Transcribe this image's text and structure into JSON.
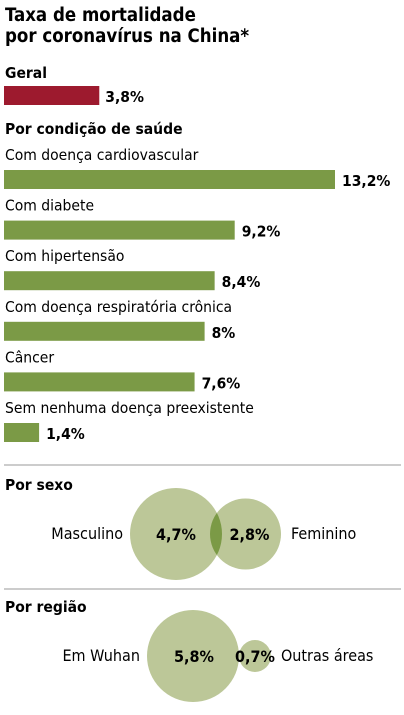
{
  "chart_data": {
    "type": "bar",
    "title": "Taxa de mortalidade por coronavírus na China*",
    "title_lines": [
      "Taxa de mortalidade",
      "por coronavírus na China*"
    ],
    "colors": {
      "overall": "#9d1a2e",
      "bars": "#7b9a46",
      "bubbles": "#bcc798",
      "overlap": "#7b9a46"
    },
    "groups": [
      {
        "label": "Geral",
        "categories": [
          ""
        ],
        "values": [
          3.8
        ],
        "value_labels": [
          "3,8%"
        ],
        "color": "overall"
      },
      {
        "label": "Por condição de saúde",
        "categories": [
          "Com doença cardiovascular",
          "Com diabete",
          "Com hipertensão",
          "Com doença respiratória crônica",
          "Câncer",
          "Sem nenhuma doença preexistente"
        ],
        "values": [
          13.2,
          9.2,
          8.4,
          8,
          7.6,
          1.4
        ],
        "value_labels": [
          "13,2%",
          "9,2%",
          "8,4%",
          "8%",
          "7,6%",
          "1,4%"
        ],
        "color": "bars"
      }
    ],
    "bubbles": [
      {
        "label": "Por sexo",
        "items": [
          {
            "name": "Masculino",
            "value": 4.7,
            "value_label": "4,7%"
          },
          {
            "name": "Feminino",
            "value": 2.8,
            "value_label": "2,8%"
          }
        ]
      },
      {
        "label": "Por região",
        "items": [
          {
            "name": "Em Wuhan",
            "value": 5.8,
            "value_label": "5,8%"
          },
          {
            "name": "Outras áreas",
            "value": 0.7,
            "value_label": "0,7%"
          }
        ]
      }
    ]
  }
}
